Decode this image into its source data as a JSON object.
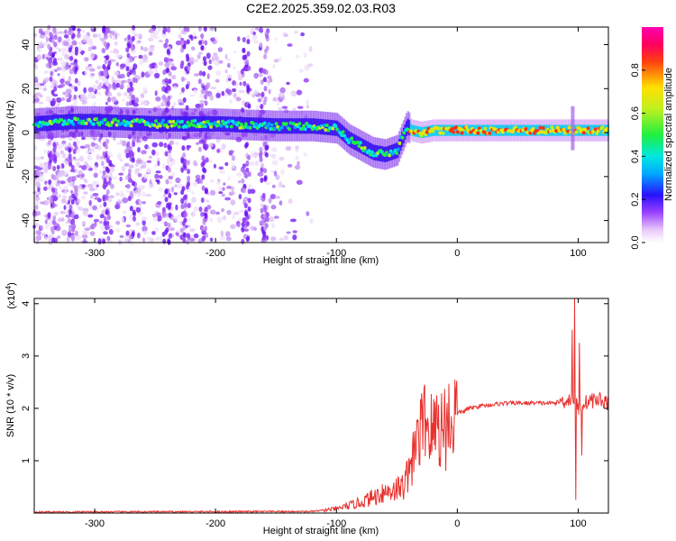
{
  "title": "C2E2.2025.359.02.03.R03",
  "chart_data": [
    {
      "type": "heatmap",
      "xlabel": "Height of straight line (km)",
      "ylabel": "Frequency (Hz)",
      "xlim": [
        -350,
        125
      ],
      "ylim": [
        -50,
        48
      ],
      "xticks": [
        -300,
        -200,
        -100,
        0,
        100
      ],
      "yticks": [
        -40,
        -20,
        0,
        20,
        40
      ],
      "colorbar": {
        "label": "Normalized spectral amplitude",
        "range": [
          0,
          1
        ],
        "ticks": [
          0.0,
          0.2,
          0.4,
          0.6,
          0.8
        ],
        "tick_labels": [
          "0.0",
          "0.2",
          "0.4",
          "0.6",
          "0.8"
        ]
      },
      "ridge": {
        "x": [
          -350,
          -320,
          -300,
          -250,
          -200,
          -150,
          -120,
          -100,
          -90,
          -80,
          -70,
          -60,
          -50,
          -42,
          -38,
          -30,
          -20,
          0,
          50,
          100,
          125
        ],
        "y": [
          4,
          5,
          5,
          4,
          4,
          3,
          3,
          2,
          -3,
          -6,
          -9,
          -10,
          -8,
          3,
          1,
          0,
          1,
          1,
          1,
          1,
          1
        ]
      }
    },
    {
      "type": "line",
      "xlabel": "Height of straight line (km)",
      "ylabel": "SNR (10 * v/v)",
      "multiplier": "(x10",
      "multiplier_exp": "4",
      "multiplier_close": ")",
      "xlim": [
        -350,
        125
      ],
      "ylim": [
        0,
        4.1
      ],
      "xticks": [
        -300,
        -200,
        -100,
        0,
        100
      ],
      "yticks": [
        1,
        2,
        3,
        4
      ],
      "color": "#e8312e",
      "envelope": {
        "x": [
          -350,
          -120,
          -100,
          -80,
          -60,
          -45,
          -40,
          -35,
          -30,
          -25,
          -20,
          -10,
          0,
          10,
          20,
          40,
          60,
          80,
          90,
          95,
          100,
          105,
          110,
          120,
          125
        ],
        "y": [
          0.02,
          0.03,
          0.08,
          0.2,
          0.4,
          0.5,
          0.8,
          1.1,
          1.6,
          1.7,
          1.5,
          1.7,
          1.9,
          2.0,
          2.05,
          2.1,
          2.1,
          2.1,
          2.15,
          2.2,
          2.0,
          2.1,
          2.15,
          2.15,
          2.1
        ]
      },
      "spikes": [
        {
          "x": -97,
          "y": 0.12
        },
        {
          "x": -82,
          "y": 0.25
        },
        {
          "x": -75,
          "y": 0.3
        },
        {
          "x": -62,
          "y": 0.55
        },
        {
          "x": -53,
          "y": 0.5
        },
        {
          "x": -46,
          "y": 0.6
        },
        {
          "x": -40,
          "y": 1.05
        },
        {
          "x": -37,
          "y": 1.3
        },
        {
          "x": -33,
          "y": 1.75
        },
        {
          "x": -29,
          "y": 2.03
        },
        {
          "x": -27,
          "y": 2.45
        },
        {
          "x": -24,
          "y": 1.7
        },
        {
          "x": -20,
          "y": 1.4
        },
        {
          "x": -17,
          "y": 2.25
        },
        {
          "x": -12,
          "y": 1.6
        },
        {
          "x": -5,
          "y": 1.85
        },
        {
          "x": 5,
          "y": 1.9
        },
        {
          "x": 95,
          "y": 3.5
        },
        {
          "x": 97,
          "y": 4.1
        },
        {
          "x": 98,
          "y": 0.25
        },
        {
          "x": 101,
          "y": 3.25
        },
        {
          "x": 103,
          "y": 1.1
        },
        {
          "x": 110,
          "y": 2.25
        },
        {
          "x": 118,
          "y": 2.3
        }
      ]
    }
  ]
}
